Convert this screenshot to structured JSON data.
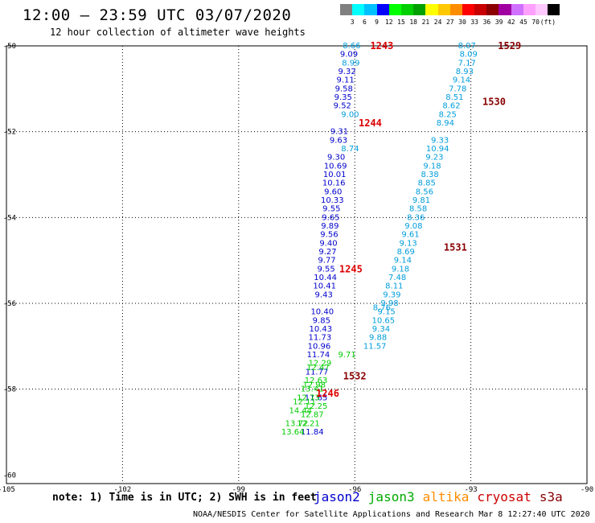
{
  "title": "12:00 – 23:59 UTC 03/07/2020",
  "subtitle": "12 hour collection of altimeter wave heights",
  "legend": {
    "colors": [
      "#808080",
      "#00ffff",
      "#00c0ff",
      "#0000ff",
      "#00ff00",
      "#00d000",
      "#00a000",
      "#ffff00",
      "#ffc800",
      "#ff8c00",
      "#ff0000",
      "#c80000",
      "#8c0000",
      "#a000a0",
      "#d070ff",
      "#ffa0ff",
      "#ffc8ff",
      "#000000"
    ],
    "labels": [
      "3",
      "6",
      "9",
      "12",
      "15",
      "18",
      "21",
      "24",
      "27",
      "30",
      "33",
      "36",
      "39",
      "42",
      "45",
      "70",
      "(ft)"
    ]
  },
  "note": "note: 1) Time is in UTC; 2) SWH is in feet",
  "satellites": [
    {
      "name": "jason2",
      "color": "#0000cc"
    },
    {
      "name": "jason3",
      "color": "#00aa00"
    },
    {
      "name": "altika",
      "color": "#ff8c00"
    },
    {
      "name": "cryosat",
      "color": "#cc0000"
    },
    {
      "name": "s3a",
      "color": "#880000"
    }
  ],
  "footer": "NOAA/NESDIS Center for Satellite Applications and Research   Mar  8 12:27:40 UTC 2020",
  "chart_data": {
    "type": "scatter",
    "title": "12:00 – 23:59 UTC 03/07/2020",
    "subtitle": "12 hour collection of altimeter wave heights",
    "xlim": [
      -105,
      -90
    ],
    "ylim": [
      -60.2,
      -50
    ],
    "x_ticks": [
      "-105",
      "-102",
      "-99",
      "-96",
      "-93",
      "-90"
    ],
    "y_ticks": [
      "-50",
      "-52",
      "-54",
      "-56",
      "-58",
      "-60"
    ],
    "grid": true,
    "legend": "bottom",
    "series": [
      {
        "name": "jason2",
        "color": "#0000cc",
        "points": [
          [
            -96.15,
            -50.2,
            "9.09"
          ],
          [
            -96.2,
            -50.6,
            "9.32"
          ],
          [
            -96.24,
            -50.8,
            "9.11"
          ],
          [
            -96.28,
            -51.0,
            "9.58"
          ],
          [
            -96.3,
            -51.2,
            "9.35"
          ],
          [
            -96.32,
            -51.4,
            "9.52"
          ],
          [
            -96.4,
            -52.0,
            "9.31"
          ],
          [
            -96.42,
            -52.2,
            "9.63"
          ],
          [
            -96.48,
            -52.6,
            "9.30"
          ],
          [
            -96.5,
            -52.8,
            "10.69"
          ],
          [
            -96.52,
            -53.0,
            "10.01"
          ],
          [
            -96.54,
            -53.2,
            "10.16"
          ],
          [
            -96.56,
            -53.4,
            "9.60"
          ],
          [
            -96.58,
            -53.6,
            "10.33"
          ],
          [
            -96.6,
            -53.8,
            "9.55"
          ],
          [
            -96.62,
            -54.0,
            "9.65"
          ],
          [
            -96.64,
            -54.2,
            "9.89"
          ],
          [
            -96.66,
            -54.4,
            "9.56"
          ],
          [
            -96.68,
            -54.6,
            "9.40"
          ],
          [
            -96.7,
            -54.8,
            "9.27"
          ],
          [
            -96.72,
            -55.0,
            "9.77"
          ],
          [
            -96.74,
            -55.2,
            "9.55"
          ],
          [
            -96.76,
            -55.4,
            "10.44"
          ],
          [
            -96.78,
            -55.6,
            "10.41"
          ],
          [
            -96.8,
            -55.8,
            "9.43"
          ],
          [
            -96.84,
            -56.2,
            "10.40"
          ],
          [
            -96.86,
            -56.4,
            "9.85"
          ],
          [
            -96.88,
            -56.6,
            "10.43"
          ],
          [
            -96.9,
            -56.8,
            "11.73"
          ],
          [
            -96.92,
            -57.0,
            "10.96"
          ],
          [
            -96.94,
            -57.2,
            "11.74"
          ],
          [
            -96.98,
            -57.6,
            "11.77"
          ],
          [
            -97.0,
            -58.2,
            "11.65"
          ],
          [
            -97.1,
            -59.0,
            "11.84"
          ]
        ]
      },
      {
        "name": "jason3",
        "color": "#00cc00",
        "points": [
          [
            -96.2,
            -57.2,
            "9.71"
          ],
          [
            -96.9,
            -57.4,
            "12.29"
          ],
          [
            -96.95,
            -57.5,
            "12.47"
          ],
          [
            -97.0,
            -57.8,
            "12.63"
          ],
          [
            -97.05,
            -57.9,
            "12.98"
          ],
          [
            -97.1,
            -58.0,
            "13.41"
          ],
          [
            -97.2,
            -58.2,
            "12.73"
          ],
          [
            -97.3,
            -58.3,
            "12.11"
          ],
          [
            -97.0,
            -58.4,
            "12.25"
          ],
          [
            -97.4,
            -58.5,
            "14.44"
          ],
          [
            -97.1,
            -58.6,
            "12.87"
          ],
          [
            -97.5,
            -58.8,
            "13.72"
          ],
          [
            -97.2,
            -58.8,
            "12.21"
          ],
          [
            -97.6,
            -59.0,
            "13.64"
          ]
        ]
      },
      {
        "name": "altika",
        "color": "#ff8c00",
        "points": []
      },
      {
        "name": "cryosat",
        "color": "#cc0000",
        "points": []
      },
      {
        "name": "s3a",
        "color": "#009ddc",
        "points": [
          [
            -96.08,
            -50.0,
            "8.66"
          ],
          [
            -96.1,
            -50.4,
            "8.99"
          ],
          [
            -96.12,
            -51.6,
            "9.00"
          ],
          [
            -96.12,
            -52.4,
            "8.74"
          ],
          [
            -93.1,
            -50.0,
            "8.07"
          ],
          [
            -93.06,
            -50.2,
            "8.09"
          ],
          [
            -93.1,
            -50.4,
            "7.17"
          ],
          [
            -93.16,
            -50.6,
            "8.93"
          ],
          [
            -93.24,
            -50.8,
            "9.14"
          ],
          [
            -93.34,
            -51.0,
            "7.78"
          ],
          [
            -93.42,
            -51.2,
            "8.51"
          ],
          [
            -93.5,
            -51.4,
            "8.62"
          ],
          [
            -93.6,
            -51.6,
            "8.25"
          ],
          [
            -93.66,
            -51.8,
            "8.94"
          ],
          [
            -93.8,
            -52.2,
            "9.33"
          ],
          [
            -93.86,
            -52.4,
            "10.94"
          ],
          [
            -93.94,
            -52.6,
            "9.23"
          ],
          [
            -94.0,
            -52.8,
            "9.18"
          ],
          [
            -94.06,
            -53.0,
            "8.38"
          ],
          [
            -94.14,
            -53.2,
            "8.85"
          ],
          [
            -94.2,
            -53.4,
            "8.56"
          ],
          [
            -94.28,
            -53.6,
            "9.81"
          ],
          [
            -94.36,
            -53.8,
            "8.58"
          ],
          [
            -94.42,
            -54.0,
            "8.36"
          ],
          [
            -94.48,
            -54.2,
            "9.08"
          ],
          [
            -94.56,
            -54.4,
            "9.61"
          ],
          [
            -94.62,
            -54.6,
            "9.13"
          ],
          [
            -94.68,
            -54.8,
            "8.69"
          ],
          [
            -94.76,
            -55.0,
            "9.14"
          ],
          [
            -94.82,
            -55.2,
            "9.18"
          ],
          [
            -94.9,
            -55.4,
            "7.48"
          ],
          [
            -94.98,
            -55.6,
            "8.11"
          ],
          [
            -95.04,
            -55.8,
            "9.39"
          ],
          [
            -95.1,
            -56.0,
            "9.98"
          ],
          [
            -95.18,
            -56.2,
            "9.15"
          ],
          [
            -95.26,
            -56.4,
            "10.65"
          ],
          [
            -95.32,
            -56.6,
            "9.34"
          ],
          [
            -95.4,
            -56.8,
            "9.88"
          ],
          [
            -95.48,
            -57.0,
            "11.57"
          ],
          [
            -95.3,
            -56.1,
            "8.76"
          ]
        ]
      }
    ],
    "annotations": [
      {
        "text": "1243",
        "x": -95.3,
        "y": -50.0,
        "color": "#dd0000"
      },
      {
        "text": "1244",
        "x": -95.6,
        "y": -51.8,
        "color": "#dd0000"
      },
      {
        "text": "1245",
        "x": -96.1,
        "y": -55.2,
        "color": "#dd0000"
      },
      {
        "text": "1246",
        "x": -96.7,
        "y": -58.1,
        "color": "#dd0000"
      },
      {
        "text": "1529",
        "x": -92.0,
        "y": -50.0,
        "color": "#880000"
      },
      {
        "text": "1530",
        "x": -92.4,
        "y": -51.3,
        "color": "#880000"
      },
      {
        "text": "1531",
        "x": -93.4,
        "y": -54.7,
        "color": "#880000"
      },
      {
        "text": "1532",
        "x": -96.0,
        "y": -57.7,
        "color": "#880000"
      }
    ]
  }
}
